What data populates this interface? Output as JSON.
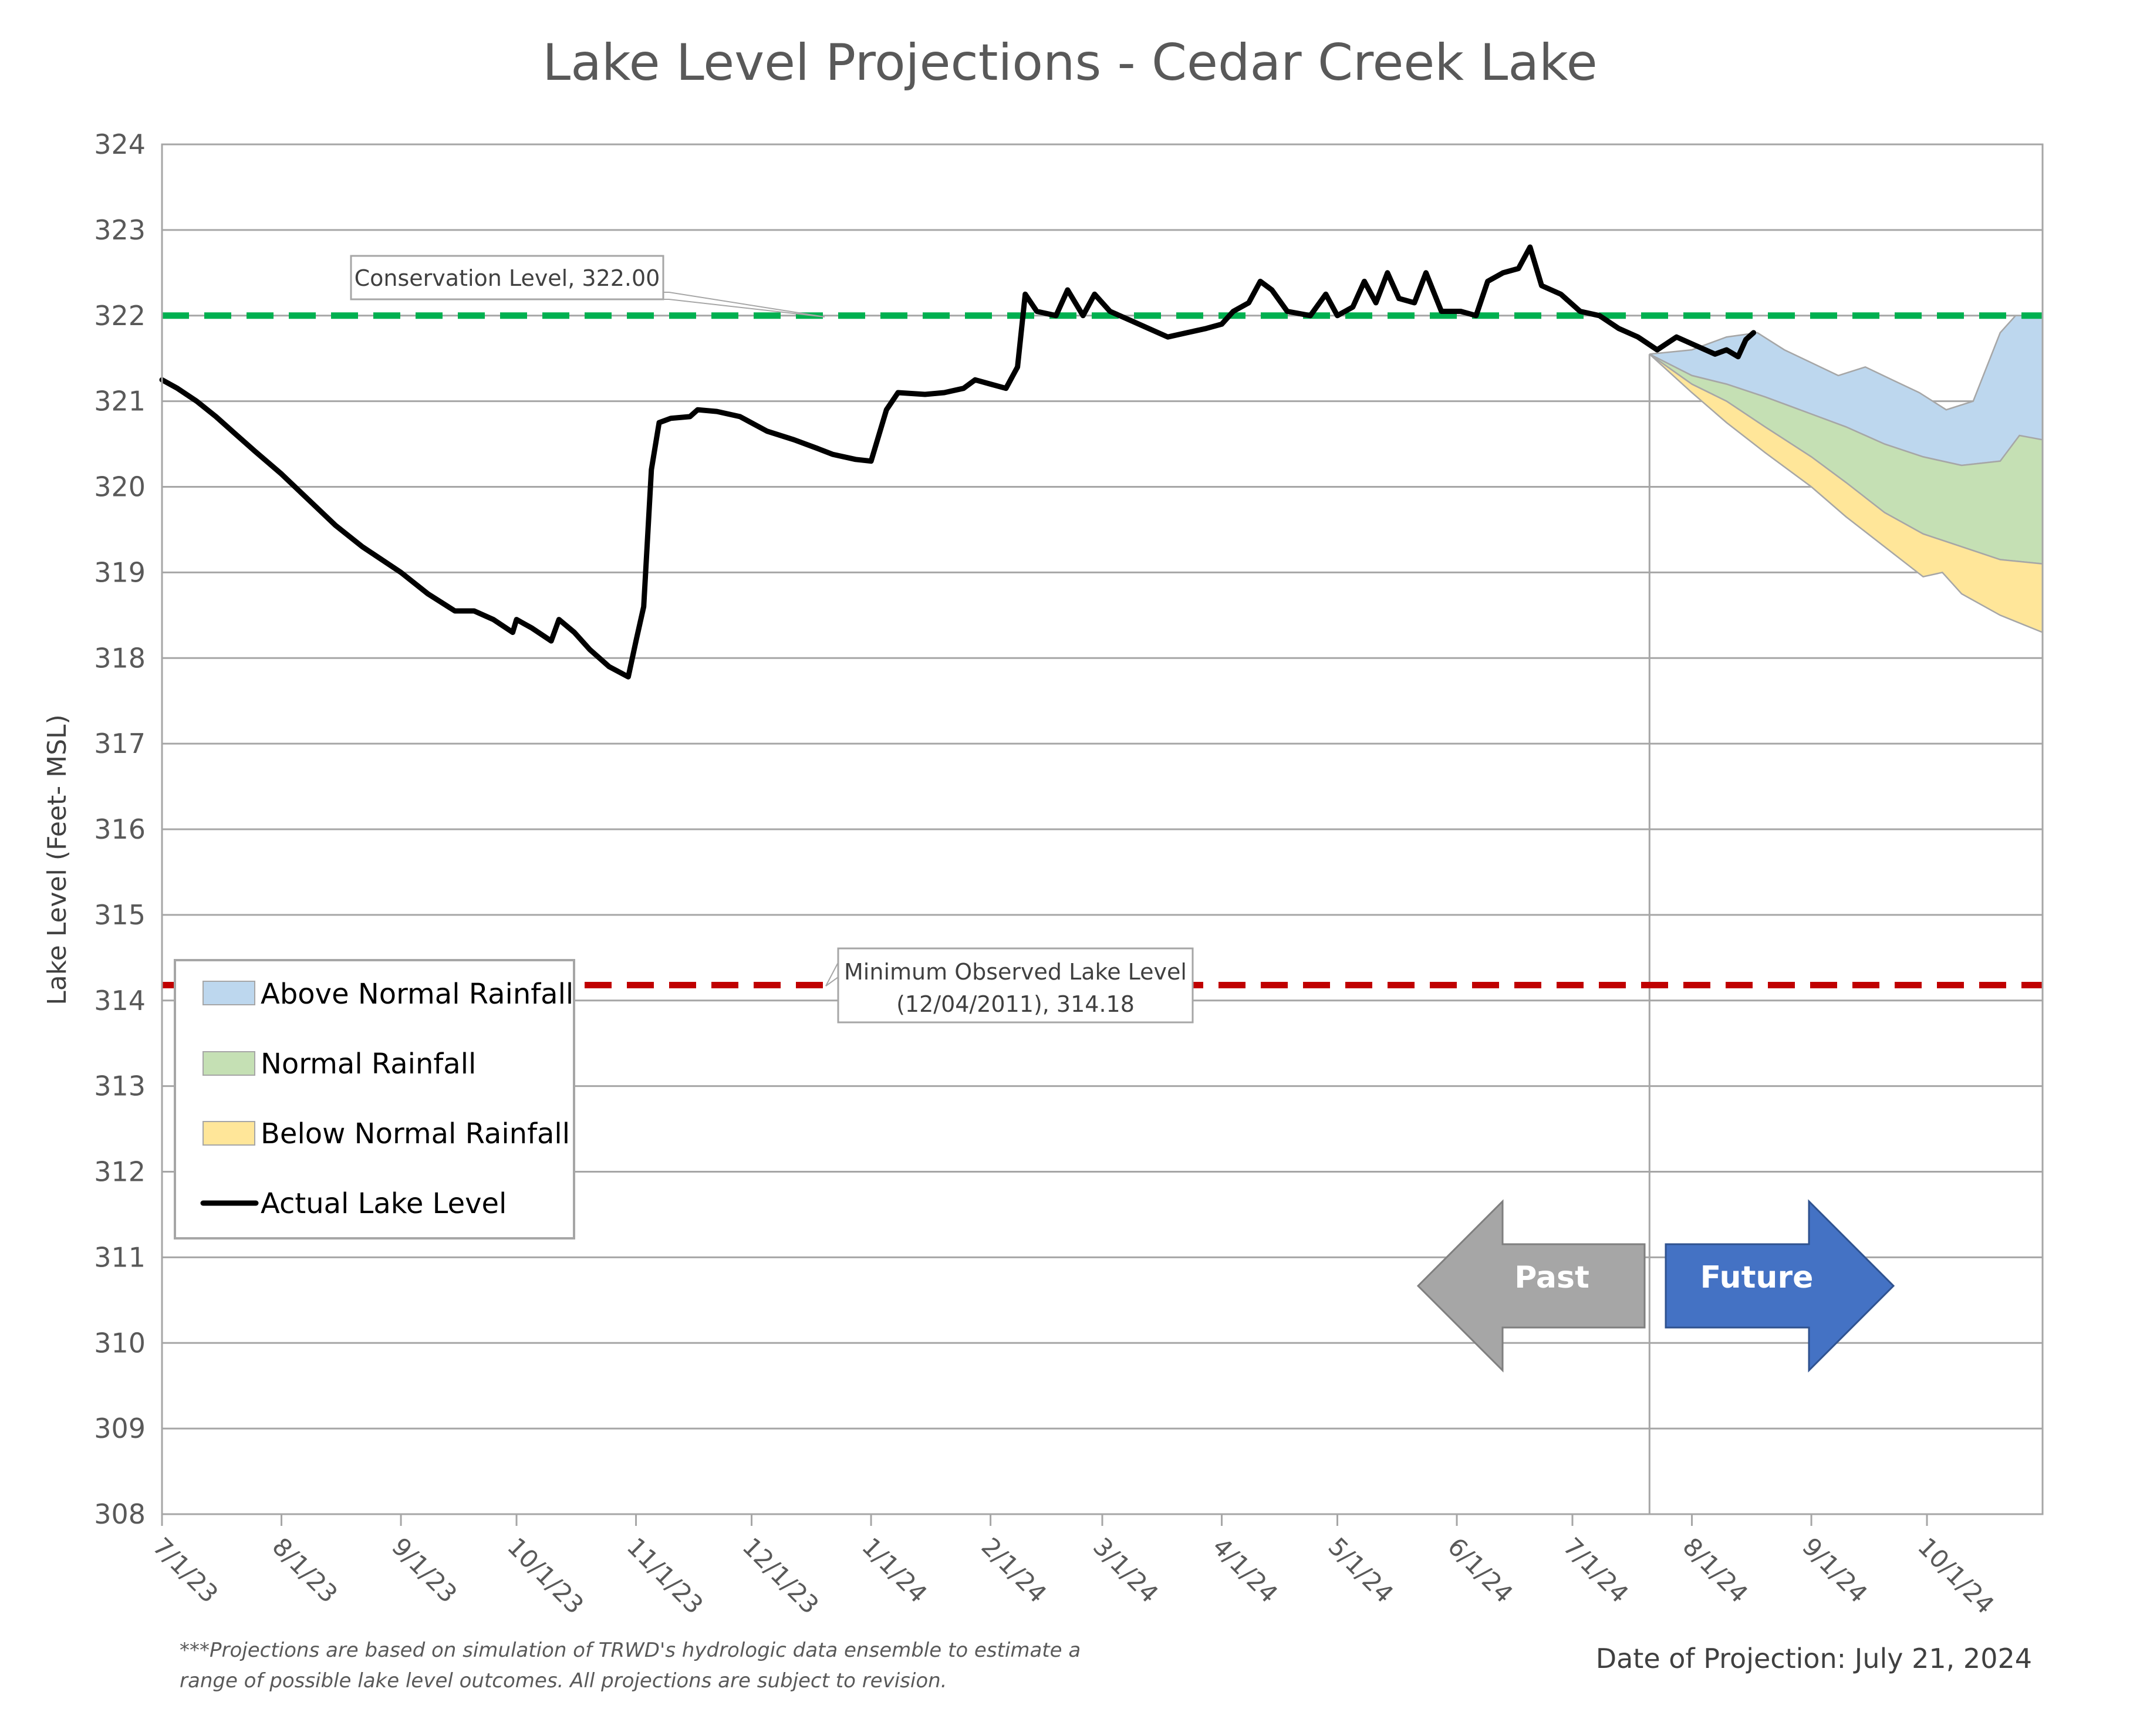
{
  "chart_data": {
    "type": "line",
    "title": "Lake Level Projections - Cedar Creek Lake",
    "ylabel": "Lake Level (Feet- MSL)",
    "xlabel": "",
    "ylim": [
      308,
      324
    ],
    "yticks": [
      324,
      323,
      322,
      321,
      320,
      319,
      318,
      317,
      316,
      315,
      314,
      313,
      312,
      311,
      310,
      309,
      308
    ],
    "xlim": [
      "7/1/23",
      "10/31/24"
    ],
    "xticks": [
      "7/1/23",
      "8/1/23",
      "9/1/23",
      "10/1/23",
      "11/1/23",
      "12/1/23",
      "1/1/24",
      "2/1/24",
      "3/1/24",
      "4/1/24",
      "5/1/24",
      "6/1/24",
      "7/1/24",
      "8/1/24",
      "9/1/24",
      "10/1/24"
    ],
    "grid": "horizontal",
    "legend_position": "lower-left",
    "legend": [
      {
        "label": "Above Normal Rainfall",
        "kind": "swatch",
        "color": "#bdd7ee"
      },
      {
        "label": "Normal Rainfall",
        "kind": "swatch",
        "color": "#c5e0b4"
      },
      {
        "label": "Below Normal Rainfall",
        "kind": "swatch",
        "color": "#ffe699"
      },
      {
        "label": "Actual Lake Level",
        "kind": "line",
        "color": "#000000"
      }
    ],
    "reference_lines": [
      {
        "name": "Conservation Level",
        "value": 322.0,
        "color": "#00b050",
        "label": "Conservation Level, 322.00"
      },
      {
        "name": "Minimum Observed Lake Level",
        "value": 314.18,
        "color": "#c00000",
        "label_line1": "Minimum Observed Lake Level",
        "label_line2": "(12/04/2011), 314.18"
      }
    ],
    "projection_date": "7/21/24",
    "actual_series": {
      "name": "Actual Lake Level",
      "color": "#000000",
      "points": [
        [
          "7/1/23",
          321.25
        ],
        [
          "7/5/23",
          321.15
        ],
        [
          "7/10/23",
          321.0
        ],
        [
          "7/15/23",
          320.82
        ],
        [
          "7/20/23",
          320.62
        ],
        [
          "7/25/23",
          320.42
        ],
        [
          "8/1/23",
          320.15
        ],
        [
          "8/8/23",
          319.85
        ],
        [
          "8/15/23",
          319.55
        ],
        [
          "8/22/23",
          319.3
        ],
        [
          "9/1/23",
          319.0
        ],
        [
          "9/8/23",
          318.75
        ],
        [
          "9/15/23",
          318.55
        ],
        [
          "9/20/23",
          318.55
        ],
        [
          "9/25/23",
          318.45
        ],
        [
          "9/30/23",
          318.3
        ],
        [
          "10/1/23",
          318.45
        ],
        [
          "10/5/23",
          318.35
        ],
        [
          "10/10/23",
          318.2
        ],
        [
          "10/12/23",
          318.45
        ],
        [
          "10/16/23",
          318.3
        ],
        [
          "10/20/23",
          318.1
        ],
        [
          "10/25/23",
          317.9
        ],
        [
          "10/30/23",
          317.78
        ],
        [
          "11/1/23",
          318.2
        ],
        [
          "11/3/23",
          318.6
        ],
        [
          "11/5/23",
          320.2
        ],
        [
          "11/7/23",
          320.75
        ],
        [
          "11/10/23",
          320.8
        ],
        [
          "11/15/23",
          320.82
        ],
        [
          "11/17/23",
          320.9
        ],
        [
          "11/22/23",
          320.88
        ],
        [
          "11/28/23",
          320.82
        ],
        [
          "12/5/23",
          320.65
        ],
        [
          "12/12/23",
          320.55
        ],
        [
          "12/18/23",
          320.45
        ],
        [
          "12/22/23",
          320.38
        ],
        [
          "12/28/23",
          320.32
        ],
        [
          "1/1/24",
          320.3
        ],
        [
          "1/5/24",
          320.9
        ],
        [
          "1/8/24",
          321.1
        ],
        [
          "1/15/24",
          321.08
        ],
        [
          "1/20/24",
          321.1
        ],
        [
          "1/25/24",
          321.15
        ],
        [
          "1/28/24",
          321.25
        ],
        [
          "2/1/24",
          321.2
        ],
        [
          "2/5/24",
          321.15
        ],
        [
          "2/8/24",
          321.4
        ],
        [
          "2/10/24",
          322.25
        ],
        [
          "2/13/24",
          322.05
        ],
        [
          "2/18/24",
          322.0
        ],
        [
          "2/21/24",
          322.3
        ],
        [
          "2/25/24",
          322.0
        ],
        [
          "2/28/24",
          322.25
        ],
        [
          "3/3/24",
          322.05
        ],
        [
          "3/8/24",
          321.95
        ],
        [
          "3/13/24",
          321.85
        ],
        [
          "3/18/24",
          321.75
        ],
        [
          "3/23/24",
          321.8
        ],
        [
          "3/28/24",
          321.85
        ],
        [
          "4/1/24",
          321.9
        ],
        [
          "4/4/24",
          322.05
        ],
        [
          "4/8/24",
          322.15
        ],
        [
          "4/11/24",
          322.4
        ],
        [
          "4/14/24",
          322.3
        ],
        [
          "4/18/24",
          322.05
        ],
        [
          "4/24/24",
          322.0
        ],
        [
          "4/28/24",
          322.25
        ],
        [
          "5/1/24",
          322.0
        ],
        [
          "5/5/24",
          322.1
        ],
        [
          "5/8/24",
          322.4
        ],
        [
          "5/11/24",
          322.15
        ],
        [
          "5/14/24",
          322.5
        ],
        [
          "5/17/24",
          322.2
        ],
        [
          "5/21/24",
          322.15
        ],
        [
          "5/24/24",
          322.5
        ],
        [
          "5/28/24",
          322.05
        ],
        [
          "6/2/24",
          322.05
        ],
        [
          "6/6/24",
          322.0
        ],
        [
          "6/9/24",
          322.4
        ],
        [
          "6/13/24",
          322.5
        ],
        [
          "6/17/24",
          322.55
        ],
        [
          "6/20/24",
          322.8
        ],
        [
          "6/23/24",
          322.35
        ],
        [
          "6/28/24",
          322.25
        ],
        [
          "7/3/24",
          322.05
        ],
        [
          "7/8/24",
          322.0
        ],
        [
          "7/13/24",
          321.85
        ],
        [
          "7/18/24",
          321.75
        ],
        [
          "7/23/24",
          321.6
        ],
        [
          "7/28/24",
          321.75
        ],
        [
          "8/2/24",
          321.65
        ],
        [
          "8/7/24",
          321.55
        ],
        [
          "8/10/24",
          321.6
        ],
        [
          "8/13/24",
          321.52
        ],
        [
          "8/15/24",
          321.72
        ],
        [
          "8/17/24",
          321.8
        ]
      ]
    },
    "projection_bands": [
      {
        "name": "Above Normal Rainfall",
        "color": "#bdd7ee",
        "upper": [
          [
            "7/21/24",
            321.55
          ],
          [
            "8/1/24",
            321.6
          ],
          [
            "8/10/24",
            321.75
          ],
          [
            "8/18/24",
            321.8
          ],
          [
            "8/25/24",
            321.6
          ],
          [
            "9/1/24",
            321.45
          ],
          [
            "9/8/24",
            321.3
          ],
          [
            "9/15/24",
            321.4
          ],
          [
            "9/22/24",
            321.25
          ],
          [
            "9/29/24",
            321.1
          ],
          [
            "10/6/24",
            320.9
          ],
          [
            "10/13/24",
            321.0
          ],
          [
            "10/20/24",
            321.8
          ],
          [
            "10/24/24",
            322.0
          ],
          [
            "10/31/24",
            322.0
          ]
        ],
        "lower": [
          [
            "7/21/24",
            321.55
          ],
          [
            "8/1/24",
            321.3
          ],
          [
            "8/10/24",
            321.2
          ],
          [
            "8/20/24",
            321.05
          ],
          [
            "9/1/24",
            320.85
          ],
          [
            "9/10/24",
            320.7
          ],
          [
            "9/20/24",
            320.5
          ],
          [
            "9/30/24",
            320.35
          ],
          [
            "10/10/24",
            320.25
          ],
          [
            "10/20/24",
            320.3
          ],
          [
            "10/31/24",
            320.0
          ]
        ]
      },
      {
        "name": "Normal Rainfall",
        "color": "#c5e0b4",
        "upper": [
          [
            "7/21/24",
            321.55
          ],
          [
            "8/1/24",
            321.3
          ],
          [
            "8/10/24",
            321.2
          ],
          [
            "8/20/24",
            321.05
          ],
          [
            "9/1/24",
            320.85
          ],
          [
            "9/10/24",
            320.7
          ],
          [
            "9/20/24",
            320.5
          ],
          [
            "9/30/24",
            320.35
          ],
          [
            "10/10/24",
            320.25
          ],
          [
            "10/20/24",
            320.3
          ],
          [
            "10/25/24",
            320.6
          ],
          [
            "10/31/24",
            320.55
          ]
        ],
        "lower": [
          [
            "7/21/24",
            321.55
          ],
          [
            "8/1/24",
            321.2
          ],
          [
            "8/10/24",
            321.0
          ],
          [
            "8/20/24",
            320.7
          ],
          [
            "9/1/24",
            320.35
          ],
          [
            "9/10/24",
            320.05
          ],
          [
            "9/20/24",
            319.7
          ],
          [
            "9/30/24",
            319.45
          ],
          [
            "10/10/24",
            319.3
          ],
          [
            "10/20/24",
            319.15
          ],
          [
            "10/31/24",
            319.1
          ]
        ]
      },
      {
        "name": "Below Normal Rainfall",
        "color": "#ffe699",
        "upper": [
          [
            "7/21/24",
            321.55
          ],
          [
            "8/1/24",
            321.2
          ],
          [
            "8/10/24",
            321.0
          ],
          [
            "8/20/24",
            320.7
          ],
          [
            "9/1/24",
            320.35
          ],
          [
            "9/10/24",
            320.05
          ],
          [
            "9/20/24",
            319.7
          ],
          [
            "9/30/24",
            319.45
          ],
          [
            "10/10/24",
            319.3
          ],
          [
            "10/20/24",
            319.15
          ],
          [
            "10/31/24",
            319.1
          ]
        ],
        "lower": [
          [
            "7/21/24",
            321.55
          ],
          [
            "8/1/24",
            321.1
          ],
          [
            "8/10/24",
            320.75
          ],
          [
            "8/20/24",
            320.4
          ],
          [
            "9/1/24",
            320.0
          ],
          [
            "9/10/24",
            319.65
          ],
          [
            "9/20/24",
            319.3
          ],
          [
            "9/30/24",
            318.95
          ],
          [
            "10/5/24",
            319.0
          ],
          [
            "10/10/24",
            318.75
          ],
          [
            "10/20/24",
            318.5
          ],
          [
            "10/31/24",
            318.3
          ]
        ]
      }
    ],
    "arrows": {
      "past": "Past",
      "future": "Future",
      "past_color": "#a6a6a6",
      "future_color": "#4472c4"
    }
  },
  "footnote": {
    "line1": "***Projections are based on simulation of TRWD's hydrologic data ensemble to estimate a",
    "line2": "range of possible lake level outcomes.  All projections are subject to revision."
  },
  "projection_note": "Date of Projection: July 21, 2024"
}
